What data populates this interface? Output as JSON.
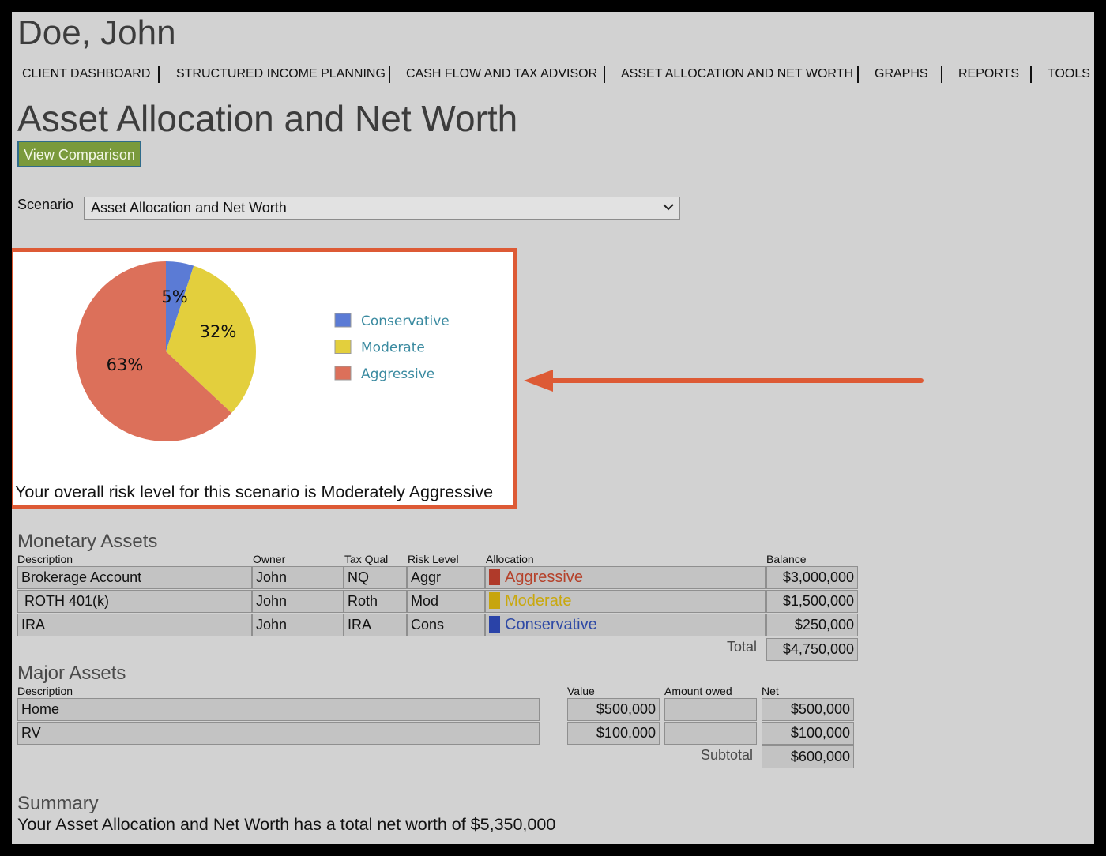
{
  "client_name": "Doe, John",
  "nav": [
    "CLIENT DASHBOARD",
    "STRUCTURED INCOME PLANNING",
    "CASH FLOW AND TAX ADVISOR",
    "ASSET ALLOCATION AND NET WORTH",
    "GRAPHS",
    "REPORTS",
    "TOOLS"
  ],
  "page_title": "Asset Allocation and Net Worth",
  "view_comparison_label": "View Comparison",
  "scenario": {
    "label": "Scenario",
    "selected": "Asset Allocation and Net Worth"
  },
  "chart_data": {
    "type": "pie",
    "slices": [
      {
        "name": "Conservative",
        "value": 5,
        "label": "5%",
        "color": "#5b7bd5"
      },
      {
        "name": "Moderate",
        "value": 32,
        "label": "32%",
        "color": "#e3cf3d"
      },
      {
        "name": "Aggressive",
        "value": 63,
        "label": "63%",
        "color": "#dc705a"
      }
    ],
    "legend": [
      "Conservative",
      "Moderate",
      "Aggressive"
    ],
    "legend_placement": "right",
    "legend_text_color": "#3a8aa0"
  },
  "risk_text": "Your overall risk level for this scenario is Moderately Aggressive",
  "monetary": {
    "title": "Monetary Assets",
    "headers": {
      "description": "Description",
      "owner": "Owner",
      "tax_qual": "Tax Qual",
      "risk_level": "Risk Level",
      "allocation": "Allocation",
      "balance": "Balance"
    },
    "rows": [
      {
        "description": "Brokerage Account",
        "owner": "John",
        "tax_qual": "NQ",
        "risk": "Aggr",
        "allocation": "Aggressive",
        "alloc_color": "#b5412a",
        "swatch_color": "#b03a2a",
        "balance": "$3,000,000"
      },
      {
        "description": "ROTH 401(k)",
        "owner": "John",
        "tax_qual": "Roth",
        "risk": "Mod",
        "allocation": "Moderate",
        "alloc_color": "#c9a80e",
        "swatch_color": "#c7a50d",
        "balance": "$1,500,000"
      },
      {
        "description": "IRA",
        "owner": "John",
        "tax_qual": "IRA",
        "risk": "Cons",
        "allocation": "Conservative",
        "alloc_color": "#2f4aa5",
        "swatch_color": "#2a43a8",
        "balance": "$250,000"
      }
    ],
    "total_label": "Total",
    "total": "$4,750,000"
  },
  "major": {
    "title": "Major Assets",
    "headers": {
      "description": "Description",
      "value": "Value",
      "amount_owed": "Amount owed",
      "net": "Net"
    },
    "rows": [
      {
        "description": "Home",
        "value": "$500,000",
        "owed": "",
        "net": "$500,000"
      },
      {
        "description": "RV",
        "value": "$100,000",
        "owed": "",
        "net": "$100,000"
      }
    ],
    "subtotal_label": "Subtotal",
    "subtotal": "$600,000"
  },
  "summary": {
    "title": "Summary",
    "text": "Your Asset Allocation and Net Worth has a total net worth of $5,350,000"
  },
  "colors": {
    "accent": "#dd5a35",
    "button": "#7a9a3c",
    "page_bg": "#d2d2d2"
  }
}
